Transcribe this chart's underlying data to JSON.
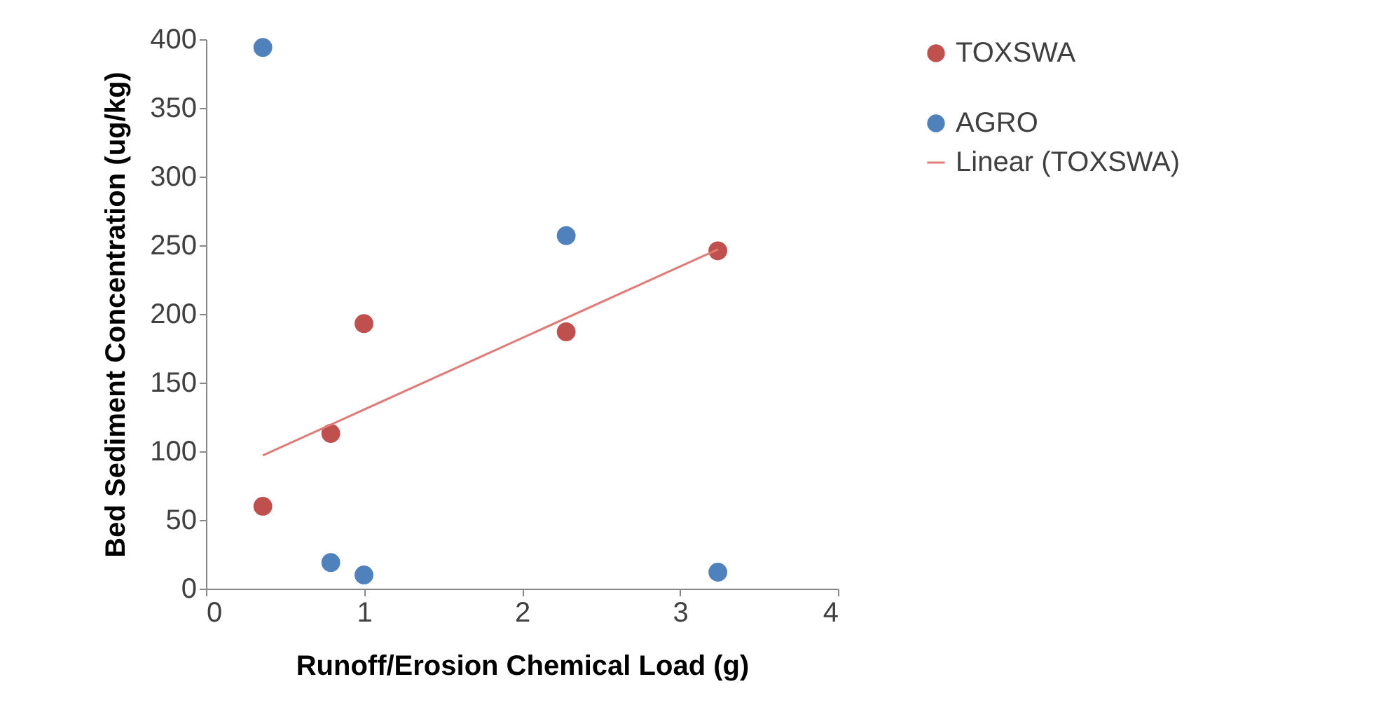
{
  "chart_data": {
    "type": "scatter",
    "xlabel": "Runoff/Erosion Chemical Load (g)",
    "ylabel": "Bed Sediment Concentration (ug/kg)",
    "xlim": [
      0,
      4
    ],
    "xticks": [
      0,
      1,
      2,
      3,
      4
    ],
    "ylim": [
      0,
      400
    ],
    "yticks": [
      0,
      50,
      100,
      150,
      200,
      250,
      300,
      350,
      400
    ],
    "grid": false,
    "legend": "right",
    "marker": "circle",
    "series": [
      {
        "name": "TOXSWA",
        "color": "#c0504d",
        "x": [
          0.36,
          0.79,
          1.0,
          2.28,
          3.24
        ],
        "values": [
          60,
          113,
          193,
          187,
          246
        ]
      },
      {
        "name": "AGRO",
        "color": "#4f81bd",
        "x": [
          0.36,
          0.79,
          1.0,
          2.28,
          3.24
        ],
        "values": [
          394,
          19,
          10,
          257,
          12
        ]
      },
      {
        "name": "Linear (TOXSWA)",
        "type": "line",
        "color": "#e07b78",
        "line_style": "solid",
        "marker": "none",
        "x": [
          0.36,
          3.24
        ],
        "values": [
          97,
          247
        ]
      }
    ]
  }
}
